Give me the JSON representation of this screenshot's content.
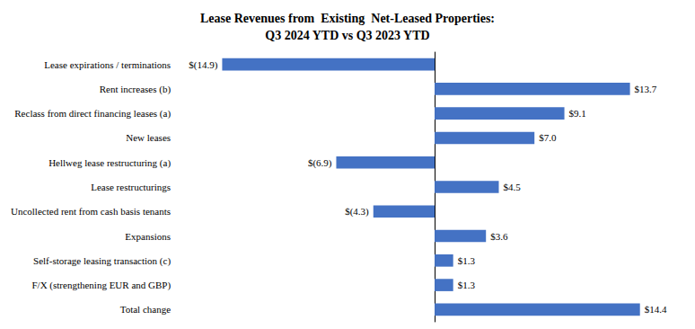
{
  "chart_data": {
    "type": "bar",
    "orientation": "horizontal",
    "title": "Lease Revenues from  Existing  Net-Leased Properties:\nQ3 2024 YTD vs Q3 2023 YTD",
    "categories": [
      "Lease expirations / terminations",
      "Rent increases (b)",
      "Reclass from direct financing leases (a)",
      "New leases",
      "Hellweg lease restructuring (a)",
      "Lease restructurings",
      "Uncollected rent from cash basis tenants",
      "Expansions",
      "Self-storage leasing transaction (c)",
      "F/X (strengthening EUR and GBP)",
      "Total change"
    ],
    "values": [
      -14.9,
      13.7,
      9.1,
      7.0,
      -6.9,
      4.5,
      -4.3,
      3.6,
      1.3,
      1.3,
      14.4
    ],
    "value_labels": [
      "$(14.9)",
      "$13.7",
      "$9.1",
      "$7.0",
      "$(6.9)",
      "$4.5",
      "$(4.3)",
      "$3.6",
      "$1.3",
      "$1.3",
      "$14.4"
    ],
    "color": "#4472C4",
    "xlim": [
      -17,
      17
    ],
    "data_labels": true,
    "tick_labels": "y",
    "grid": false
  }
}
